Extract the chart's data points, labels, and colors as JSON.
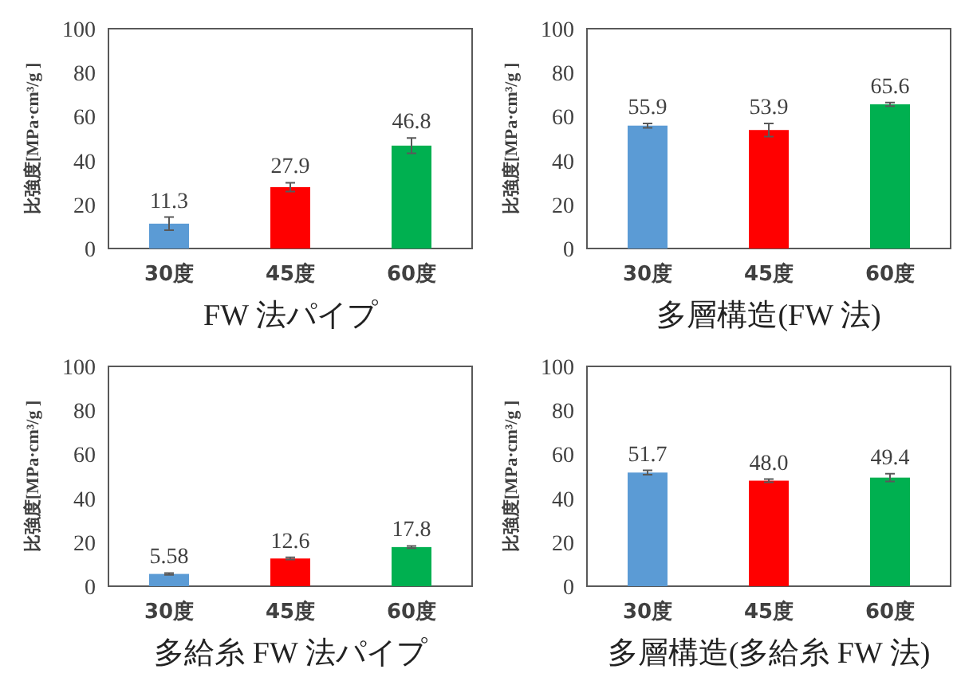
{
  "chart_data": [
    {
      "type": "bar",
      "title": "FW 法パイプ",
      "ylabel": "比強度[MPa·cm³/g ]",
      "categories": [
        "30度",
        "45度",
        "60度"
      ],
      "values": [
        11.3,
        27.9,
        46.8
      ],
      "errors": [
        3,
        2,
        3.5
      ],
      "colors": [
        "#5b9bd5",
        "#ff0000",
        "#00b050"
      ],
      "ylim": [
        0,
        100
      ],
      "yticks": [
        0,
        20,
        40,
        60,
        80,
        100
      ],
      "data_labels": true
    },
    {
      "type": "bar",
      "title": "多層構造(FW 法)",
      "ylabel": "比強度[MPa·cm³/g ]",
      "categories": [
        "30度",
        "45度",
        "60度"
      ],
      "values": [
        55.9,
        53.9,
        65.6
      ],
      "errors": [
        1,
        3,
        0.8
      ],
      "colors": [
        "#5b9bd5",
        "#ff0000",
        "#00b050"
      ],
      "ylim": [
        0,
        100
      ],
      "yticks": [
        0,
        20,
        40,
        60,
        80,
        100
      ],
      "data_labels": true
    },
    {
      "type": "bar",
      "title": "多給糸 FW 法パイプ",
      "ylabel": "比強度[MPa·cm³/g ]",
      "categories": [
        "30度",
        "45度",
        "60度"
      ],
      "values": [
        5.58,
        12.6,
        17.8
      ],
      "errors": [
        0.4,
        0.5,
        0.5
      ],
      "colors": [
        "#5b9bd5",
        "#ff0000",
        "#00b050"
      ],
      "ylim": [
        0,
        100
      ],
      "yticks": [
        0,
        20,
        40,
        60,
        80,
        100
      ],
      "data_labels": true
    },
    {
      "type": "bar",
      "title": "多層構造(多給糸 FW 法)",
      "ylabel": "比強度[MPa·cm³/g ]",
      "categories": [
        "30度",
        "45度",
        "60度"
      ],
      "values": [
        51.7,
        48.0,
        49.4
      ],
      "value_labels": [
        "51.7",
        "48.0",
        "49.4"
      ],
      "errors": [
        1,
        0.7,
        1.8
      ],
      "colors": [
        "#5b9bd5",
        "#ff0000",
        "#00b050"
      ],
      "ylim": [
        0,
        100
      ],
      "yticks": [
        0,
        20,
        40,
        60,
        80,
        100
      ]
    }
  ]
}
